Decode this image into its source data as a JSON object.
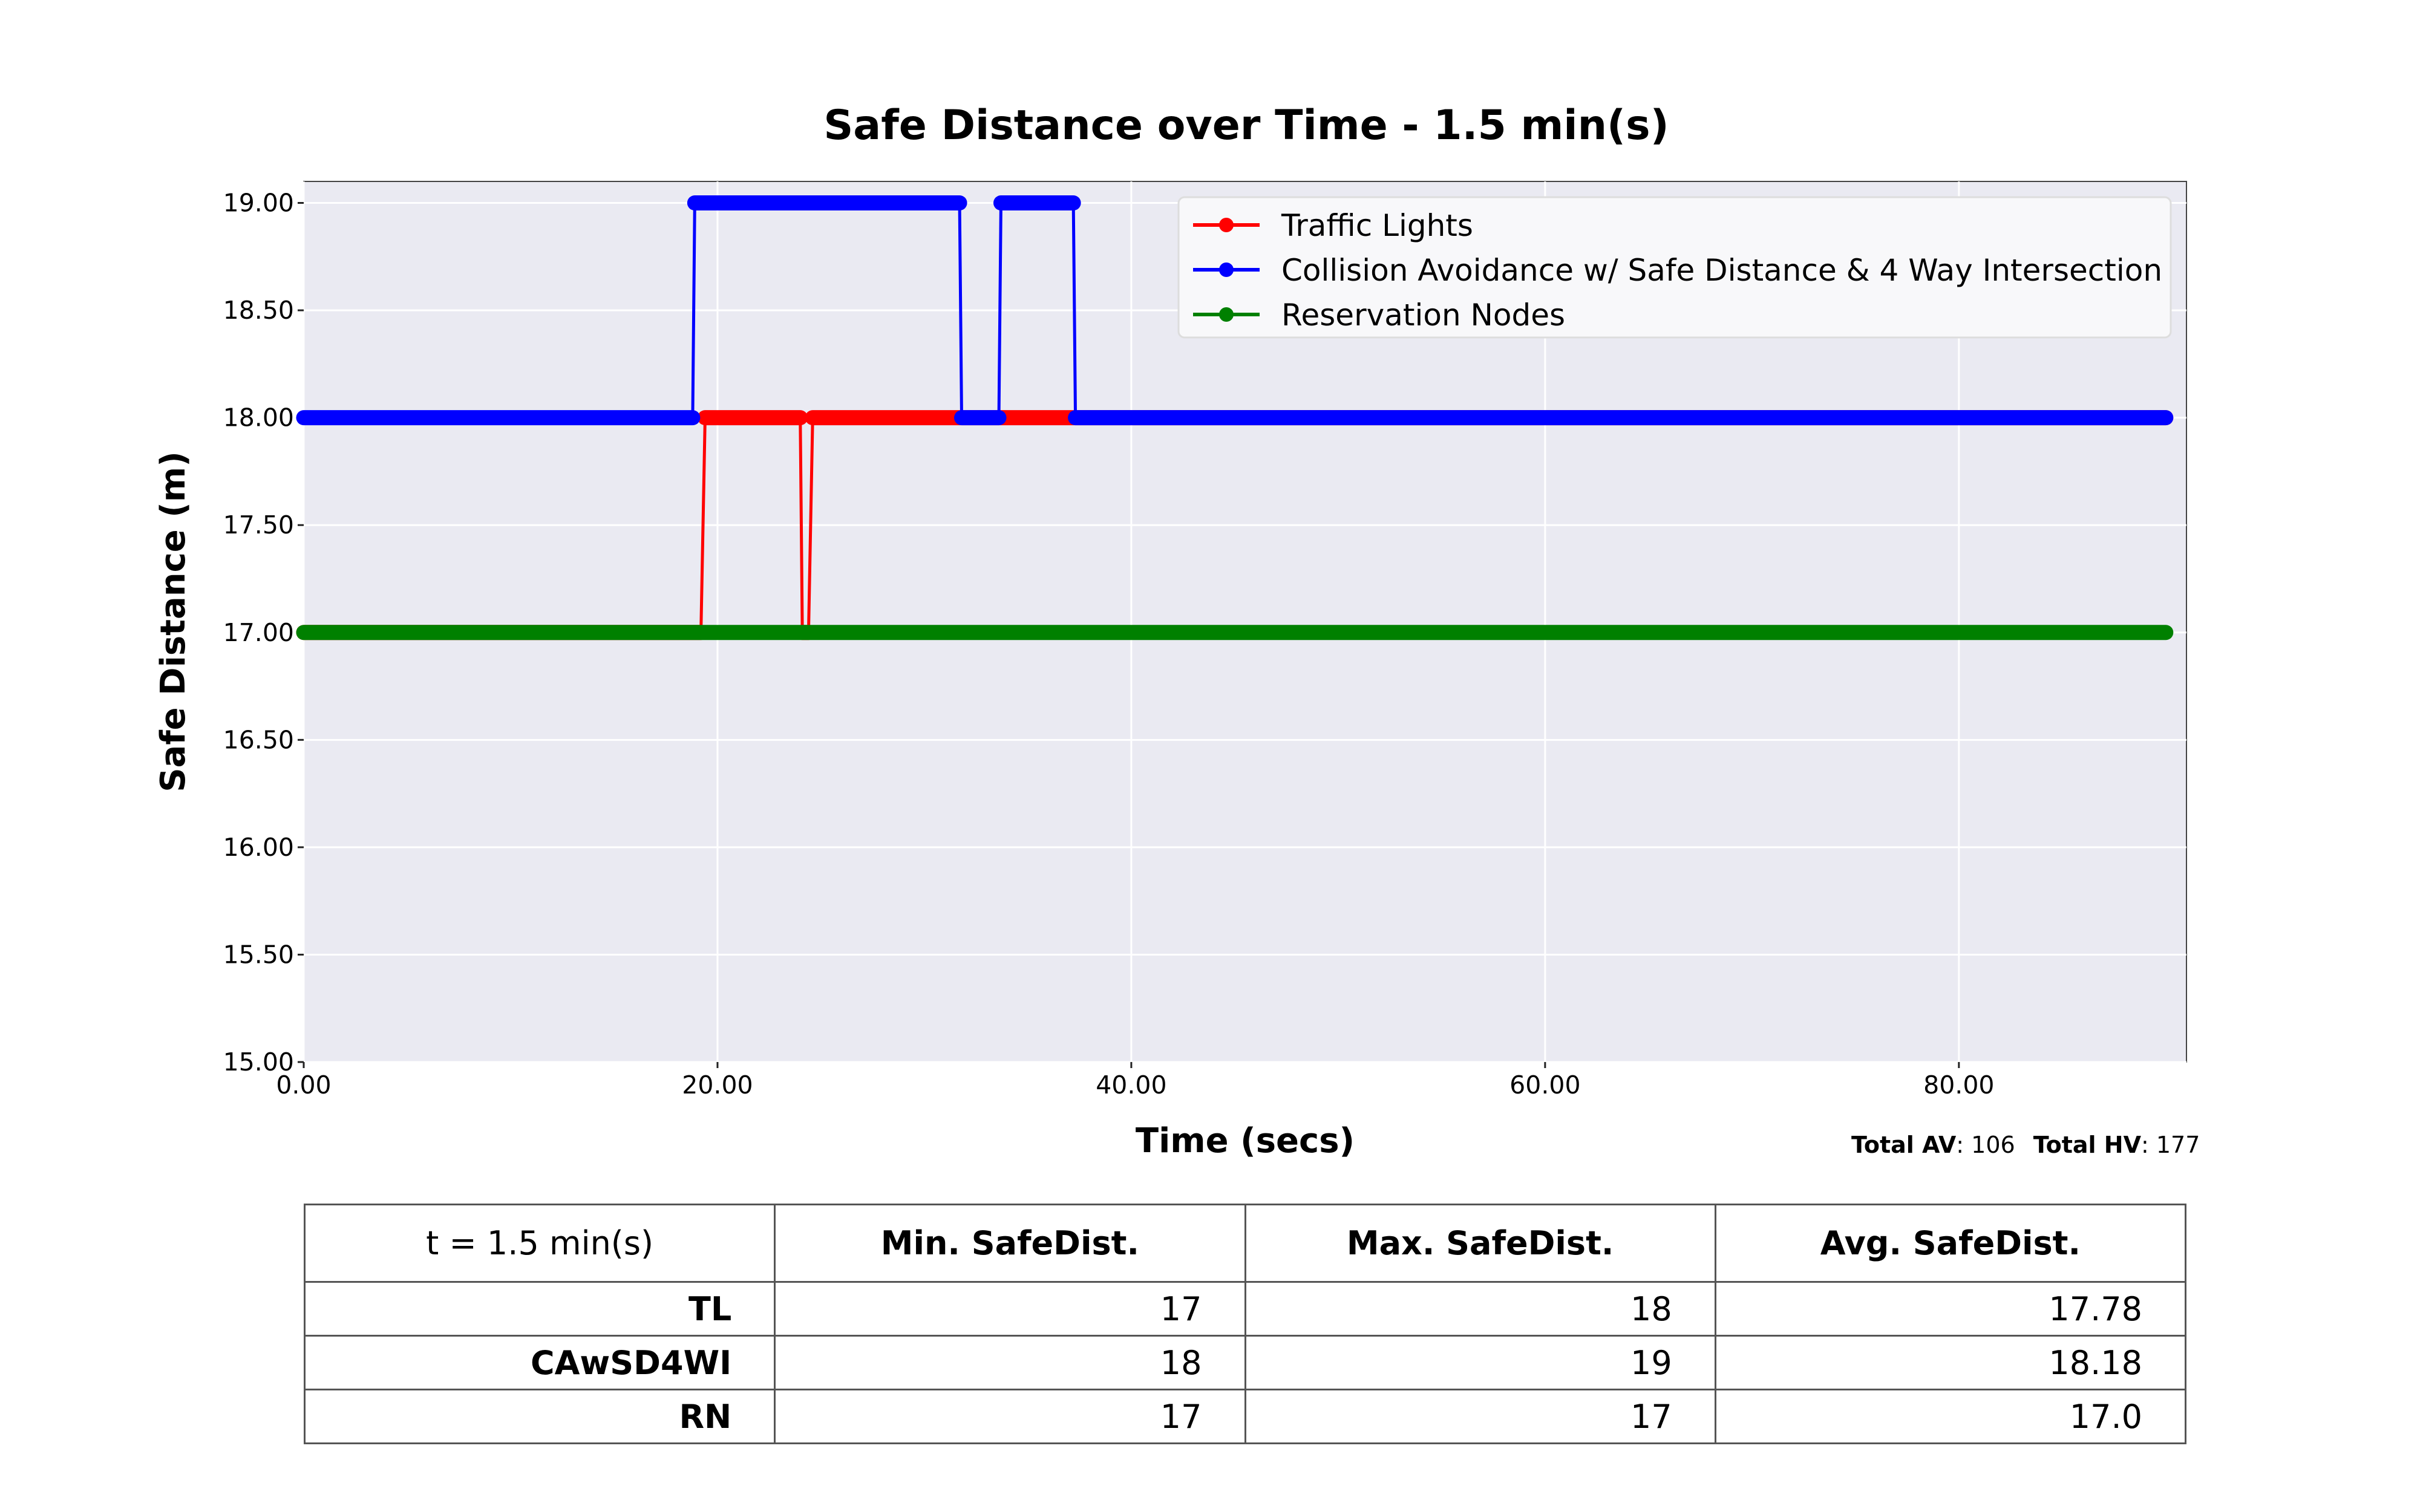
{
  "chart_data": {
    "type": "line",
    "title": "Safe Distance over Time - 1.5 min(s)",
    "xlabel": "Time (secs)",
    "ylabel": "Safe Distance (m)",
    "xlim": [
      0,
      91
    ],
    "ylim": [
      15,
      19.1
    ],
    "x_ticks": [
      "0.00",
      "20.00",
      "40.00",
      "60.00",
      "80.00"
    ],
    "y_ticks": [
      "15.00",
      "15.50",
      "16.00",
      "16.50",
      "17.00",
      "17.50",
      "18.00",
      "18.50",
      "19.00"
    ],
    "grid": true,
    "legend_position": "top-right",
    "series": [
      {
        "name": "Traffic Lights",
        "color": "#ff0000",
        "segments": [
          {
            "x_start": 0,
            "x_end": 19.2,
            "y": 17
          },
          {
            "x_start": 19.4,
            "x_end": 24.0,
            "y": 18
          },
          {
            "x_start": 24.1,
            "x_end": 24.4,
            "y": 17
          },
          {
            "x_start": 24.6,
            "x_end": 90,
            "y": 18
          }
        ]
      },
      {
        "name": "Collision Avoidance w/ Safe Distance & 4 Way Intersection",
        "color": "#0000ff",
        "segments": [
          {
            "x_start": 0,
            "x_end": 18.8,
            "y": 18
          },
          {
            "x_start": 18.9,
            "x_end": 31.7,
            "y": 19
          },
          {
            "x_start": 31.8,
            "x_end": 33.6,
            "y": 18
          },
          {
            "x_start": 33.7,
            "x_end": 37.2,
            "y": 19
          },
          {
            "x_start": 37.3,
            "x_end": 90,
            "y": 18
          }
        ]
      },
      {
        "name": "Reservation Nodes",
        "color": "#008000",
        "segments": [
          {
            "x_start": 0,
            "x_end": 90,
            "y": 17
          }
        ]
      }
    ]
  },
  "totals": {
    "av_label": "Total AV",
    "av_value": ": 106",
    "hv_label": "Total HV",
    "hv_value": ": 177"
  },
  "table": {
    "corner": "t = 1.5 min(s)",
    "columns": [
      "Min. SafeDist.",
      "Max. SafeDist.",
      "Avg. SafeDist."
    ],
    "rows": [
      {
        "label": "TL",
        "values": [
          "17",
          "18",
          "17.78"
        ]
      },
      {
        "label": "CAwSD4WI",
        "values": [
          "18",
          "19",
          "18.18"
        ]
      },
      {
        "label": "RN",
        "values": [
          "17",
          "17",
          "17.0"
        ]
      }
    ]
  }
}
